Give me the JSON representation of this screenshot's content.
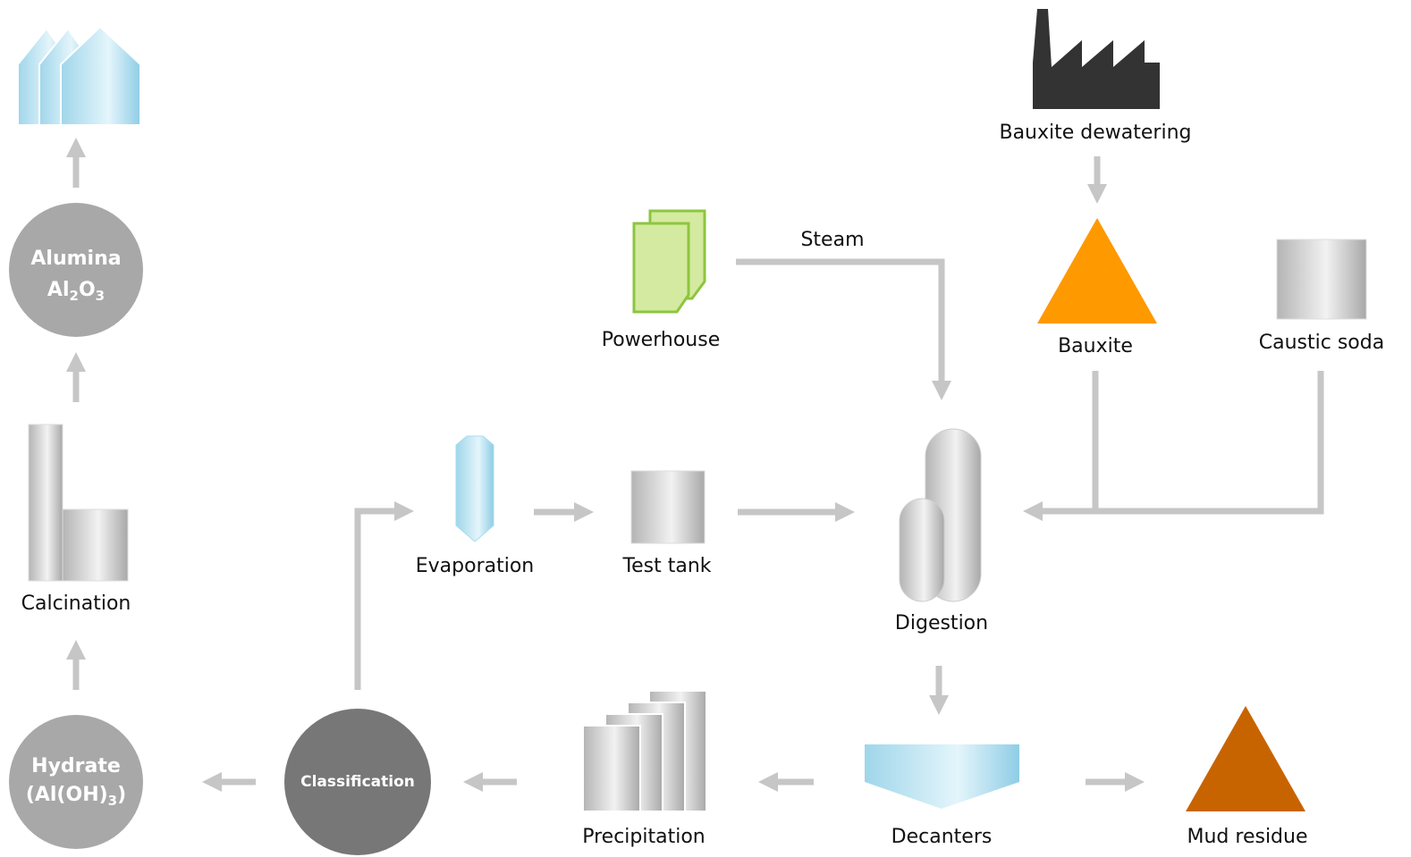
{
  "nodes": [
    {
      "label": "Bauxite dewatering"
    },
    {
      "label": "Powerhouse"
    },
    {
      "label": "Bauxite"
    },
    {
      "label": "Caustic soda"
    },
    {
      "label": "Evaporation"
    },
    {
      "label": "Test tank"
    },
    {
      "label": "Digestion"
    },
    {
      "label": "Precipitation"
    },
    {
      "label": "Decanters"
    },
    {
      "label": "Mud residue"
    },
    {
      "label": "Classification"
    },
    {
      "label": "Hydrate",
      "formula": [
        "(Al(OH)",
        "3",
        ")"
      ]
    },
    {
      "label": "Calcination"
    },
    {
      "label": "Alumina",
      "formula": [
        "Al",
        "2",
        "O",
        "3"
      ]
    }
  ],
  "edges": [
    {
      "label": "Steam"
    }
  ]
}
